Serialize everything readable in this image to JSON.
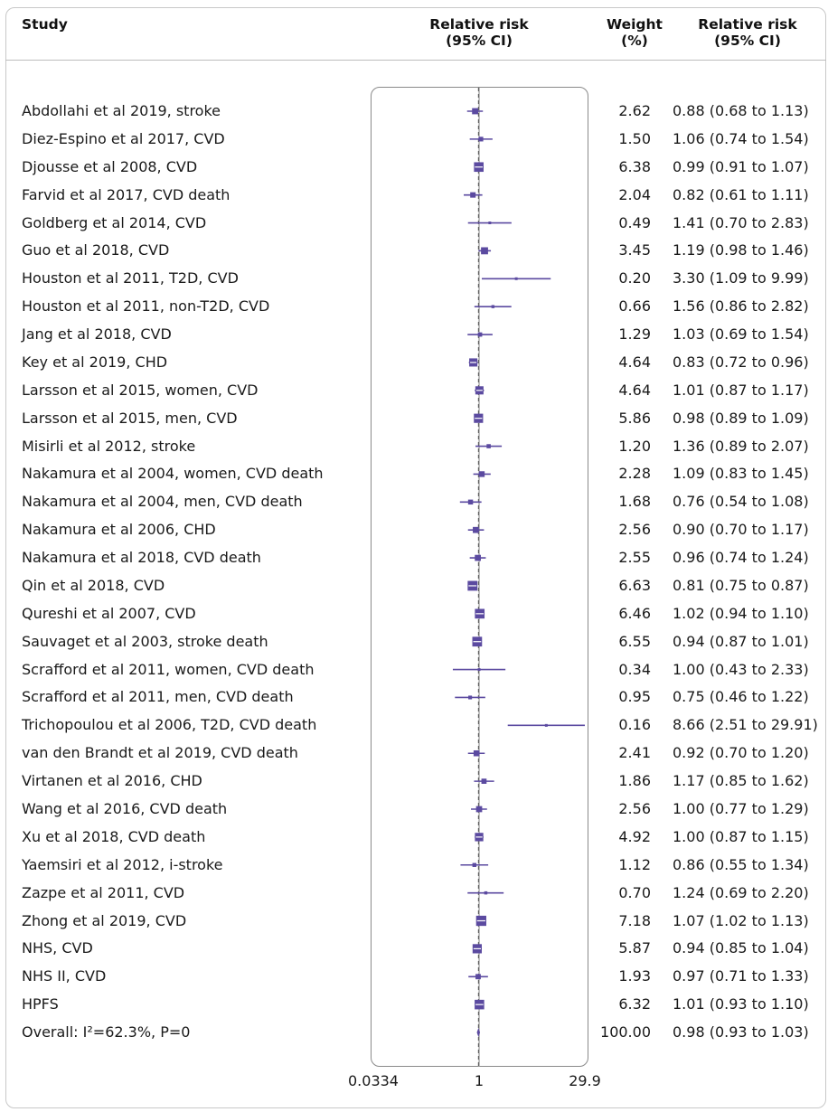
{
  "header": {
    "study": "Study",
    "rr": "Relative risk\n(95% CI)",
    "weight": "Weight\n(%)",
    "ci": "Relative risk\n(95% CI)"
  },
  "colors": {
    "marker": "#5b4aa0",
    "ref_line": "#555555"
  },
  "chart_data": {
    "type": "forest",
    "scale": "log",
    "xlim": [
      0.0334,
      29.9
    ],
    "ticks": [
      "0.0334",
      "1",
      "29.9"
    ],
    "tick_values": [
      0.0334,
      1,
      29.9
    ],
    "overall_rr": 0.98,
    "rows": [
      {
        "label": "Abdollahi et al 2019, stroke",
        "weight": "2.62",
        "ci_text": "0.88 (0.68 to 1.13)",
        "rr": 0.88,
        "lo": 0.68,
        "hi": 1.13
      },
      {
        "label": "Diez-Espino et al 2017, CVD",
        "weight": "1.50",
        "ci_text": "1.06 (0.74 to 1.54)",
        "rr": 1.06,
        "lo": 0.74,
        "hi": 1.54
      },
      {
        "label": "Djousse et al 2008, CVD",
        "weight": "6.38",
        "ci_text": "0.99 (0.91 to 1.07)",
        "rr": 0.99,
        "lo": 0.91,
        "hi": 1.07
      },
      {
        "label": "Farvid et al 2017, CVD death",
        "weight": "2.04",
        "ci_text": "0.82 (0.61 to 1.11)",
        "rr": 0.82,
        "lo": 0.61,
        "hi": 1.11
      },
      {
        "label": "Goldberg et al 2014, CVD",
        "weight": "0.49",
        "ci_text": "1.41 (0.70 to 2.83)",
        "rr": 1.41,
        "lo": 0.7,
        "hi": 2.83
      },
      {
        "label": "Guo et al 2018, CVD",
        "weight": "3.45",
        "ci_text": "1.19 (0.98 to 1.46)",
        "rr": 1.19,
        "lo": 0.98,
        "hi": 1.46
      },
      {
        "label": "Houston et al 2011, T2D, CVD",
        "weight": "0.20",
        "ci_text": "3.30 (1.09 to 9.99)",
        "rr": 3.3,
        "lo": 1.09,
        "hi": 9.99
      },
      {
        "label": "Houston et al 2011, non-T2D, CVD",
        "weight": "0.66",
        "ci_text": "1.56 (0.86 to 2.82)",
        "rr": 1.56,
        "lo": 0.86,
        "hi": 2.82
      },
      {
        "label": "Jang et al 2018, CVD",
        "weight": "1.29",
        "ci_text": "1.03 (0.69 to 1.54)",
        "rr": 1.03,
        "lo": 0.69,
        "hi": 1.54
      },
      {
        "label": "Key et al 2019, CHD",
        "weight": "4.64",
        "ci_text": "0.83 (0.72 to 0.96)",
        "rr": 0.83,
        "lo": 0.72,
        "hi": 0.96
      },
      {
        "label": "Larsson et al 2015, women, CVD",
        "weight": "4.64",
        "ci_text": "1.01 (0.87 to 1.17)",
        "rr": 1.01,
        "lo": 0.87,
        "hi": 1.17
      },
      {
        "label": "Larsson et al 2015, men, CVD",
        "weight": "5.86",
        "ci_text": "0.98 (0.89 to 1.09)",
        "rr": 0.98,
        "lo": 0.89,
        "hi": 1.09
      },
      {
        "label": "Misirli et al 2012, stroke",
        "weight": "1.20",
        "ci_text": "1.36 (0.89 to 2.07)",
        "rr": 1.36,
        "lo": 0.89,
        "hi": 2.07
      },
      {
        "label": "Nakamura et al 2004, women, CVD death",
        "weight": "2.28",
        "ci_text": "1.09 (0.83 to 1.45)",
        "rr": 1.09,
        "lo": 0.83,
        "hi": 1.45
      },
      {
        "label": "Nakamura et al 2004, men, CVD death",
        "weight": "1.68",
        "ci_text": "0.76 (0.54 to 1.08)",
        "rr": 0.76,
        "lo": 0.54,
        "hi": 1.08
      },
      {
        "label": "Nakamura et al 2006, CHD",
        "weight": "2.56",
        "ci_text": "0.90 (0.70 to 1.17)",
        "rr": 0.9,
        "lo": 0.7,
        "hi": 1.17
      },
      {
        "label": "Nakamura et al 2018, CVD death",
        "weight": "2.55",
        "ci_text": "0.96 (0.74 to 1.24)",
        "rr": 0.96,
        "lo": 0.74,
        "hi": 1.24
      },
      {
        "label": "Qin et al 2018, CVD",
        "weight": "6.63",
        "ci_text": "0.81 (0.75 to 0.87)",
        "rr": 0.81,
        "lo": 0.75,
        "hi": 0.87
      },
      {
        "label": "Qureshi et al 2007, CVD",
        "weight": "6.46",
        "ci_text": "1.02 (0.94 to 1.10)",
        "rr": 1.02,
        "lo": 0.94,
        "hi": 1.1
      },
      {
        "label": "Sauvaget et al 2003, stroke death",
        "weight": "6.55",
        "ci_text": "0.94 (0.87 to 1.01)",
        "rr": 0.94,
        "lo": 0.87,
        "hi": 1.01
      },
      {
        "label": "Scrafford et al 2011, women, CVD death",
        "weight": "0.34",
        "ci_text": "1.00 (0.43 to 2.33)",
        "rr": 1.0,
        "lo": 0.43,
        "hi": 2.33
      },
      {
        "label": "Scrafford et al 2011, men, CVD death",
        "weight": "0.95",
        "ci_text": "0.75 (0.46 to 1.22)",
        "rr": 0.75,
        "lo": 0.46,
        "hi": 1.22
      },
      {
        "label": "Trichopoulou et al 2006, T2D, CVD death",
        "weight": "0.16",
        "ci_text": "8.66 (2.51 to 29.91)",
        "rr": 8.66,
        "lo": 2.51,
        "hi": 29.91
      },
      {
        "label": "van den Brandt et al 2019, CVD death",
        "weight": "2.41",
        "ci_text": "0.92 (0.70 to 1.20)",
        "rr": 0.92,
        "lo": 0.7,
        "hi": 1.2
      },
      {
        "label": "Virtanen et al 2016, CHD",
        "weight": "1.86",
        "ci_text": "1.17 (0.85 to 1.62)",
        "rr": 1.17,
        "lo": 0.85,
        "hi": 1.62
      },
      {
        "label": "Wang et al 2016, CVD death",
        "weight": "2.56",
        "ci_text": "1.00 (0.77 to 1.29)",
        "rr": 1.0,
        "lo": 0.77,
        "hi": 1.29
      },
      {
        "label": "Xu et al 2018, CVD death",
        "weight": "4.92",
        "ci_text": "1.00 (0.87 to 1.15)",
        "rr": 1.0,
        "lo": 0.87,
        "hi": 1.15
      },
      {
        "label": "Yaemsiri et al 2012, i-stroke",
        "weight": "1.12",
        "ci_text": "0.86 (0.55 to 1.34)",
        "rr": 0.86,
        "lo": 0.55,
        "hi": 1.34
      },
      {
        "label": "Zazpe et al 2011, CVD",
        "weight": "0.70",
        "ci_text": "1.24 (0.69 to 2.20)",
        "rr": 1.24,
        "lo": 0.69,
        "hi": 2.2
      },
      {
        "label": "Zhong et al 2019, CVD",
        "weight": "7.18",
        "ci_text": "1.07 (1.02 to 1.13)",
        "rr": 1.07,
        "lo": 1.02,
        "hi": 1.13
      },
      {
        "label": "NHS, CVD",
        "weight": "5.87",
        "ci_text": "0.94 (0.85 to 1.04)",
        "rr": 0.94,
        "lo": 0.85,
        "hi": 1.04
      },
      {
        "label": "NHS II, CVD",
        "weight": "1.93",
        "ci_text": "0.97 (0.71 to 1.33)",
        "rr": 0.97,
        "lo": 0.71,
        "hi": 1.33
      },
      {
        "label": "HPFS",
        "weight": "6.32",
        "ci_text": "1.01 (0.93 to 1.10)",
        "rr": 1.01,
        "lo": 0.93,
        "hi": 1.1
      },
      {
        "label": "Overall: I²=62.3%, P=0",
        "weight": "100.00",
        "ci_text": "0.98 (0.93 to 1.03)",
        "rr": 0.98,
        "lo": 0.93,
        "hi": 1.03,
        "overall": true
      }
    ]
  }
}
